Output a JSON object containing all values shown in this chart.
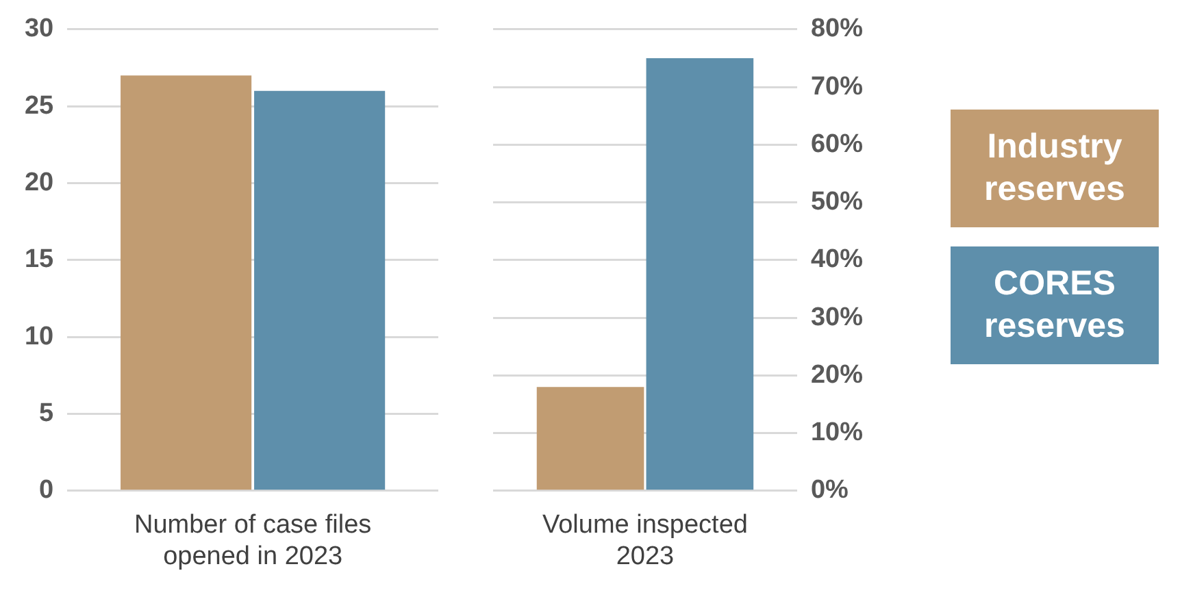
{
  "chart_data": [
    {
      "type": "bar",
      "categories": [
        "Number of case files opened in 2023"
      ],
      "series": [
        {
          "color": "#c19c72",
          "values": [
            27
          ]
        },
        {
          "color": "#5e8fab",
          "values": [
            26
          ]
        }
      ],
      "ylim": [
        0,
        30
      ],
      "yticks": [
        0,
        5,
        10,
        15,
        20,
        25,
        30
      ],
      "grid": "y",
      "legend": false
    },
    {
      "type": "bar",
      "categories": [
        "Volume inspected 2023"
      ],
      "series": [
        {
          "name": "Industry reserves",
          "color": "#c19c72",
          "values": [
            18
          ],
          "axis": "y2"
        },
        {
          "name": "CORES reserves",
          "color": "#5e8fab",
          "values": [
            75
          ],
          "axis": "y2"
        }
      ],
      "y2lim": [
        0,
        80
      ],
      "y2ticks": [
        {
          "value": 0,
          "label": "0%"
        },
        {
          "value": 10,
          "label": "10%"
        },
        {
          "value": 20,
          "label": "20%"
        },
        {
          "value": 30,
          "label": "30%"
        },
        {
          "value": 40,
          "label": "40%"
        },
        {
          "value": 50,
          "label": "50%"
        },
        {
          "value": 60,
          "label": "60%"
        },
        {
          "value": 70,
          "label": "70%"
        },
        {
          "value": 80,
          "label": "80%"
        }
      ],
      "grid": "y",
      "legend": "right"
    }
  ]
}
